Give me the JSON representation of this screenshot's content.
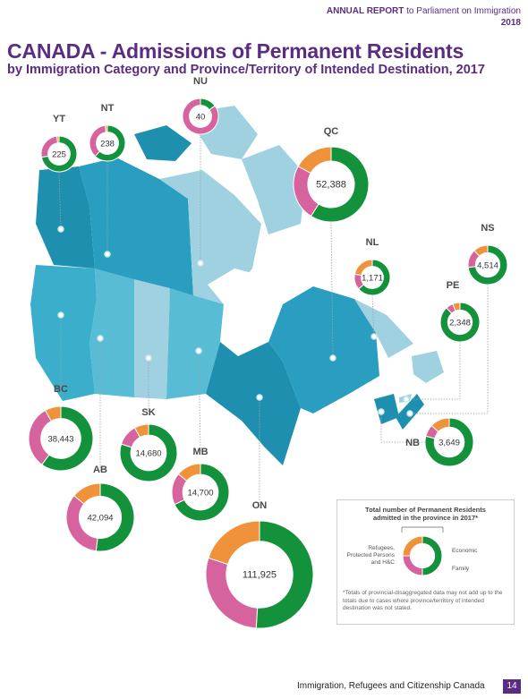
{
  "header": {
    "report_bold": "ANNUAL REPORT",
    "report_rest": " to Parliament on Immigration",
    "year": "2018"
  },
  "title": "CANADA - Admissions of Permanent Residents",
  "subtitle": "by Immigration Category and Province/Territory of Intended Destination, 2017",
  "colors": {
    "economic": "#13913b",
    "family": "#d6639e",
    "refugees": "#f0923a",
    "region_dark": "#1f8fb0",
    "region_mid": "#3aaecb",
    "region_light": "#9fd1e0"
  },
  "chart_data": {
    "type": "pie",
    "title": "CANADA - Admissions of Permanent Residents",
    "subtitle": "by Immigration Category and Province/Territory of Intended Destination, 2017",
    "categories": [
      "Economic",
      "Family",
      "Refugees, Protected Persons and H&C"
    ],
    "provinces": [
      {
        "code": "YT",
        "total": "225",
        "economic": 0.72,
        "family": 0.26,
        "refugees": 0.02
      },
      {
        "code": "NT",
        "total": "238",
        "economic": 0.62,
        "family": 0.36,
        "refugees": 0.02
      },
      {
        "code": "NU",
        "total": "40",
        "economic": 0.15,
        "family": 0.85,
        "refugees": 0.0
      },
      {
        "code": "QC",
        "total": "52,388",
        "economic": 0.59,
        "family": 0.24,
        "refugees": 0.17
      },
      {
        "code": "NL",
        "total": "1,171",
        "economic": 0.64,
        "family": 0.14,
        "refugees": 0.22
      },
      {
        "code": "NS",
        "total": "4,514",
        "economic": 0.73,
        "family": 0.15,
        "refugees": 0.12
      },
      {
        "code": "PE",
        "total": "2,348",
        "economic": 0.88,
        "family": 0.06,
        "refugees": 0.06
      },
      {
        "code": "NB",
        "total": "3,649",
        "economic": 0.79,
        "family": 0.08,
        "refugees": 0.13
      },
      {
        "code": "BC",
        "total": "38,443",
        "economic": 0.6,
        "family": 0.32,
        "refugees": 0.08
      },
      {
        "code": "SK",
        "total": "14,680",
        "economic": 0.8,
        "family": 0.12,
        "refugees": 0.08
      },
      {
        "code": "AB",
        "total": "42,094",
        "economic": 0.52,
        "family": 0.34,
        "refugees": 0.14
      },
      {
        "code": "MB",
        "total": "14,700",
        "economic": 0.68,
        "family": 0.18,
        "refugees": 0.14
      },
      {
        "code": "ON",
        "total": "111,925",
        "economic": 0.51,
        "family": 0.29,
        "refugees": 0.2
      }
    ]
  },
  "legend": {
    "title_line1": "Total number of Permanent Residents",
    "title_line2": "admitted in the province in 2017*",
    "refugees_label_1": "Refugees,",
    "refugees_label_2": "Protected Persons",
    "refugees_label_3": "and H&C",
    "economic_label": "Economic",
    "family_label": "Family",
    "note": "*Totals of provincial-disaggregated data may not add up to the totals due to cases where province/territory of intended destination was not stated."
  },
  "footer": {
    "agency": "Immigration, Refugees and Citizenship Canada",
    "page": "14"
  }
}
